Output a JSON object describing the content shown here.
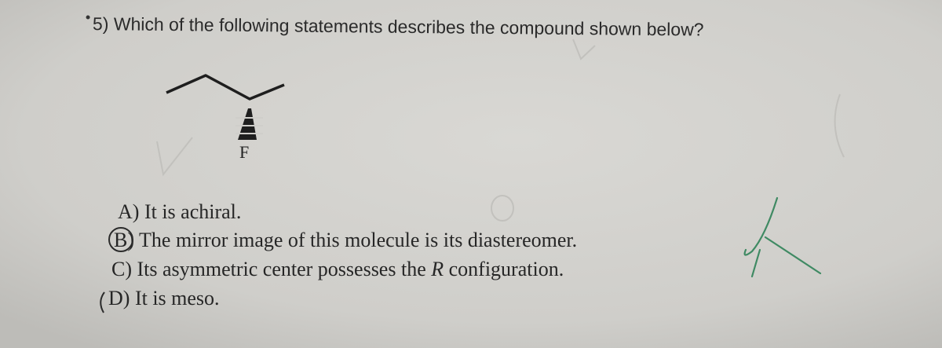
{
  "question": {
    "text": "5) Which of the following statements describes the compound shown below?"
  },
  "molecule": {
    "atom_label": "F"
  },
  "options": [
    {
      "letter": "A)",
      "text": "It is achiral."
    },
    {
      "letter": "B)",
      "text": "The mirror image of this molecule is its diastereomer."
    },
    {
      "letter": "C)",
      "text_before": "Its asymmetric center possesses the ",
      "text_italic": "R",
      "text_after": " configuration."
    },
    {
      "letter": "D)",
      "text": "It is meso."
    }
  ]
}
